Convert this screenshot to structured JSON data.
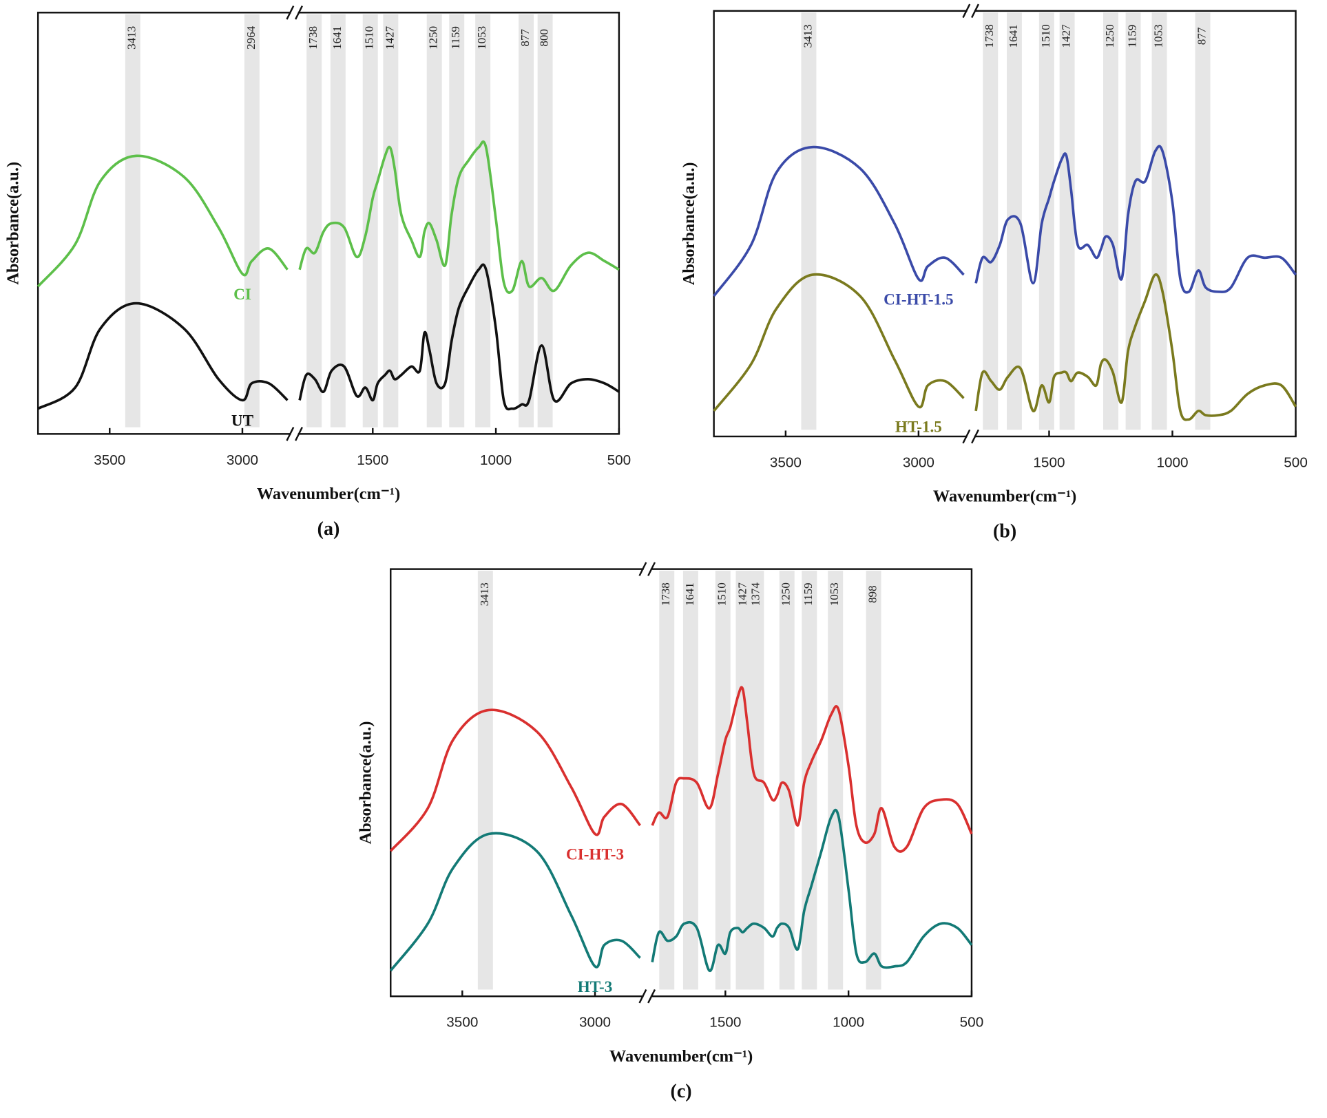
{
  "chart_data": [
    {
      "type": "line",
      "label": "(a)",
      "x_label": "Wavenumber(cm⁻¹)",
      "y_label": "Absorbance(a.u.)",
      "x_segments": [
        {
          "xlim": [
            3770,
            2820
          ],
          "xticks": [
            3500,
            3000
          ]
        },
        {
          "xlim": [
            1800,
            500
          ],
          "xticks": [
            1500,
            1000,
            500
          ]
        }
      ],
      "ylim": [
        0,
        100
      ],
      "peaks": [
        3413,
        2964,
        1738,
        1641,
        1510,
        1427,
        1250,
        1159,
        1053,
        877,
        800
      ],
      "x": [
        3770,
        3630,
        3535,
        3400,
        3220,
        3090,
        3000,
        2965,
        2900,
        2830,
        2300,
        1797,
        1770,
        1735,
        1700,
        1667,
        1616,
        1565,
        1530,
        1500,
        1480,
        1450,
        1430,
        1411,
        1384,
        1343,
        1309,
        1290,
        1270,
        1241,
        1206,
        1180,
        1150,
        1110,
        1070,
        1040,
        1000,
        968,
        933,
        895,
        865,
        814,
        763,
        695,
        626,
        558,
        500
      ],
      "series": [
        {
          "name": "CI",
          "color": "#5dbf4a",
          "values": [
            35,
            45,
            60,
            66,
            61,
            49,
            38,
            41,
            44,
            39,
            null,
            39,
            44,
            43,
            48,
            50,
            49,
            42,
            47,
            56,
            60,
            66,
            68,
            63,
            52,
            46,
            42,
            48,
            50,
            46,
            40,
            52,
            61,
            65,
            68,
            68,
            51,
            36,
            34,
            41,
            35,
            37,
            34,
            40,
            43,
            41,
            39
          ]
        },
        {
          "name": "UT",
          "color": "#111111",
          "values": [
            6,
            11,
            25,
            31,
            25,
            13,
            8,
            12,
            12,
            8,
            null,
            8,
            14,
            13,
            10,
            15,
            16,
            9,
            11,
            8,
            12,
            14,
            15,
            13,
            14,
            16,
            15,
            24,
            20,
            12,
            12,
            22,
            30,
            35,
            39,
            39,
            25,
            8,
            6,
            7,
            8,
            21,
            8,
            12,
            13,
            12,
            10
          ]
        }
      ]
    },
    {
      "type": "line",
      "label": "(b)",
      "x_label": "Wavenumber(cm⁻¹)",
      "y_label": "Absorbance(a.u.)",
      "x_segments": [
        {
          "xlim": [
            3770,
            2820
          ],
          "xticks": [
            3500,
            3000
          ]
        },
        {
          "xlim": [
            1800,
            500
          ],
          "xticks": [
            1500,
            1000,
            500
          ]
        }
      ],
      "ylim": [
        0,
        100
      ],
      "peaks": [
        3413,
        1738,
        1641,
        1510,
        1427,
        1250,
        1159,
        1053,
        877
      ],
      "x": [
        3770,
        3630,
        3535,
        3400,
        3220,
        3090,
        3000,
        2965,
        2900,
        2830,
        2300,
        1797,
        1770,
        1735,
        1700,
        1667,
        1616,
        1565,
        1530,
        1500,
        1480,
        1450,
        1430,
        1411,
        1384,
        1343,
        1309,
        1290,
        1270,
        1241,
        1206,
        1180,
        1150,
        1110,
        1070,
        1040,
        1000,
        968,
        933,
        895,
        865,
        814,
        763,
        695,
        626,
        558,
        500
      ],
      "series": [
        {
          "name": "CI-HT-1.5",
          "color": "#3a4aa8",
          "values": [
            33,
            45,
            62,
            68,
            63,
            50,
            37,
            40,
            42,
            38,
            null,
            36,
            42,
            41,
            45,
            51,
            50,
            36,
            50,
            56,
            60,
            65,
            66,
            58,
            45,
            45,
            42,
            44,
            47,
            45,
            37,
            52,
            60,
            60,
            67,
            67,
            55,
            37,
            34,
            39,
            35,
            34,
            35,
            42,
            42,
            42,
            38
          ]
        },
        {
          "name": "HT-1.5",
          "color": "#7a7a1e",
          "values": [
            6,
            17,
            30,
            38,
            33,
            18,
            7,
            12,
            13,
            9,
            null,
            6,
            15,
            13,
            11,
            14,
            16,
            6,
            12,
            8,
            14,
            15,
            15,
            13,
            15,
            14,
            12,
            17,
            18,
            15,
            8,
            20,
            26,
            32,
            38,
            34,
            20,
            6,
            4,
            6,
            5,
            5,
            6,
            10,
            12,
            12,
            7
          ]
        }
      ]
    },
    {
      "type": "line",
      "label": "(c)",
      "x_label": "Wavenumber(cm⁻¹)",
      "y_label": "Absorbance(a.u.)",
      "x_segments": [
        {
          "xlim": [
            3770,
            2820
          ],
          "xticks": [
            3500,
            3000
          ]
        },
        {
          "xlim": [
            1800,
            500
          ],
          "xticks": [
            1500,
            1000,
            500
          ]
        }
      ],
      "ylim": [
        0,
        100
      ],
      "peaks": [
        3413,
        1738,
        1641,
        1510,
        1427,
        1374,
        1250,
        1159,
        1053,
        898
      ],
      "x": [
        3770,
        3630,
        3535,
        3400,
        3220,
        3090,
        3000,
        2965,
        2900,
        2830,
        2300,
        1797,
        1770,
        1735,
        1700,
        1667,
        1616,
        1565,
        1530,
        1500,
        1480,
        1450,
        1430,
        1411,
        1384,
        1343,
        1309,
        1290,
        1270,
        1241,
        1206,
        1180,
        1150,
        1110,
        1070,
        1040,
        1000,
        968,
        933,
        895,
        865,
        814,
        763,
        695,
        626,
        558,
        500
      ],
      "series": [
        {
          "name": "CI-HT-3",
          "color": "#d9302f",
          "values": [
            34,
            44,
            60,
            67,
            62,
            49,
            38,
            42,
            45,
            40,
            null,
            40,
            43,
            42,
            50,
            51,
            50,
            44,
            52,
            60,
            63,
            70,
            72,
            64,
            52,
            50,
            46,
            47,
            50,
            48,
            40,
            50,
            55,
            60,
            66,
            67,
            54,
            40,
            36,
            38,
            44,
            35,
            35,
            44,
            46,
            45,
            38
          ]
        },
        {
          "name": "HT-3",
          "color": "#137a76",
          "values": [
            6,
            17,
            30,
            38,
            34,
            19,
            7,
            12,
            13,
            9,
            null,
            8,
            15,
            13,
            14,
            17,
            16,
            6,
            12,
            10,
            15,
            16,
            15,
            16,
            17,
            16,
            14,
            16,
            17,
            16,
            11,
            20,
            26,
            34,
            42,
            42,
            25,
            10,
            8,
            10,
            7,
            7,
            8,
            14,
            17,
            16,
            12
          ]
        }
      ]
    }
  ]
}
